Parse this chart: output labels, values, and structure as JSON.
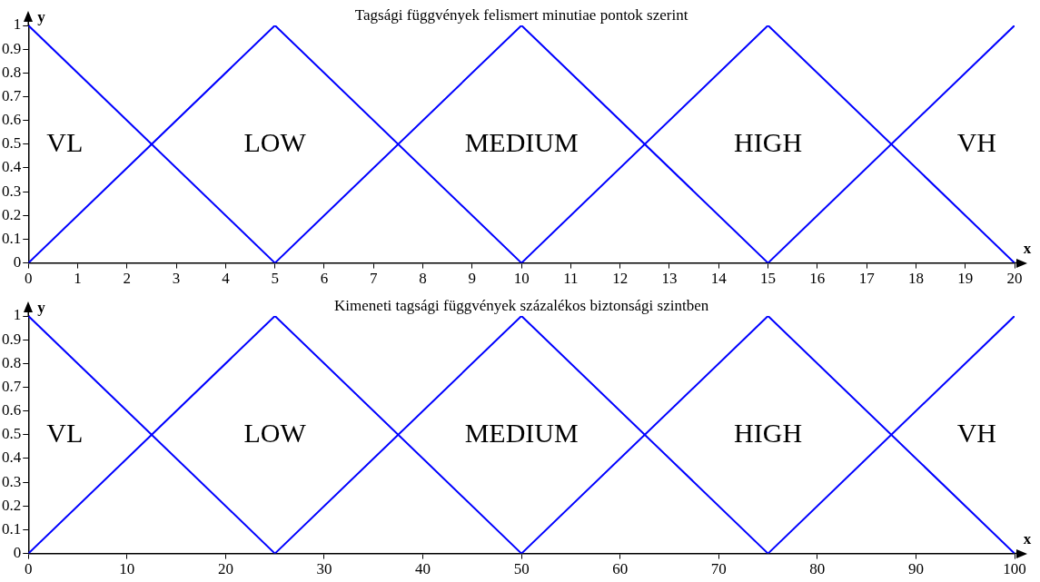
{
  "chart_data": [
    {
      "type": "line",
      "title": "Tagsági függvények felismert minutiae pontok szerint",
      "xlabel": "x",
      "ylabel": "y",
      "xlim": [
        0,
        20
      ],
      "xticks": [
        0,
        1,
        2,
        3,
        4,
        5,
        6,
        7,
        8,
        9,
        10,
        11,
        12,
        13,
        14,
        15,
        16,
        17,
        18,
        19,
        20
      ],
      "ylim": [
        0,
        1
      ],
      "yticks": [
        0,
        0.1,
        0.2,
        0.3,
        0.4,
        0.5,
        0.6,
        0.7,
        0.8,
        0.9,
        1
      ],
      "grid": false,
      "legend": false,
      "marker": "none",
      "line_style": "solid",
      "series": [
        {
          "name": "VL",
          "color": "#0000ff",
          "x": [
            0,
            5
          ],
          "values": [
            1,
            0
          ]
        },
        {
          "name": "LOW",
          "color": "#0000ff",
          "x": [
            0,
            5,
            10
          ],
          "values": [
            0,
            1,
            0
          ]
        },
        {
          "name": "MEDIUM",
          "color": "#0000ff",
          "x": [
            5,
            10,
            15
          ],
          "values": [
            0,
            1,
            0
          ]
        },
        {
          "name": "HIGH",
          "color": "#0000ff",
          "x": [
            10,
            15,
            20
          ],
          "values": [
            0,
            1,
            0
          ]
        },
        {
          "name": "VH",
          "color": "#0000ff",
          "x": [
            15,
            20
          ],
          "values": [
            0,
            1
          ]
        }
      ]
    },
    {
      "type": "line",
      "title": "Kimeneti tagsági függvények százalékos biztonsági szintben",
      "xlabel": "x",
      "ylabel": "y",
      "xlim": [
        0,
        100
      ],
      "xticks": [
        0,
        10,
        20,
        30,
        40,
        50,
        60,
        70,
        80,
        90,
        100
      ],
      "ylim": [
        0,
        1
      ],
      "yticks": [
        0,
        0.1,
        0.2,
        0.3,
        0.4,
        0.5,
        0.6,
        0.7,
        0.8,
        0.9,
        1
      ],
      "grid": false,
      "legend": false,
      "marker": "none",
      "line_style": "solid",
      "series": [
        {
          "name": "VL",
          "color": "#0000ff",
          "x": [
            0,
            25
          ],
          "values": [
            1,
            0
          ]
        },
        {
          "name": "LOW",
          "color": "#0000ff",
          "x": [
            0,
            25,
            50
          ],
          "values": [
            0,
            1,
            0
          ]
        },
        {
          "name": "MEDIUM",
          "color": "#0000ff",
          "x": [
            25,
            50,
            75
          ],
          "values": [
            0,
            1,
            0
          ]
        },
        {
          "name": "HIGH",
          "color": "#0000ff",
          "x": [
            50,
            75,
            100
          ],
          "values": [
            0,
            1,
            0
          ]
        },
        {
          "name": "VH",
          "color": "#0000ff",
          "x": [
            75,
            100
          ],
          "values": [
            0,
            1
          ]
        }
      ]
    }
  ]
}
